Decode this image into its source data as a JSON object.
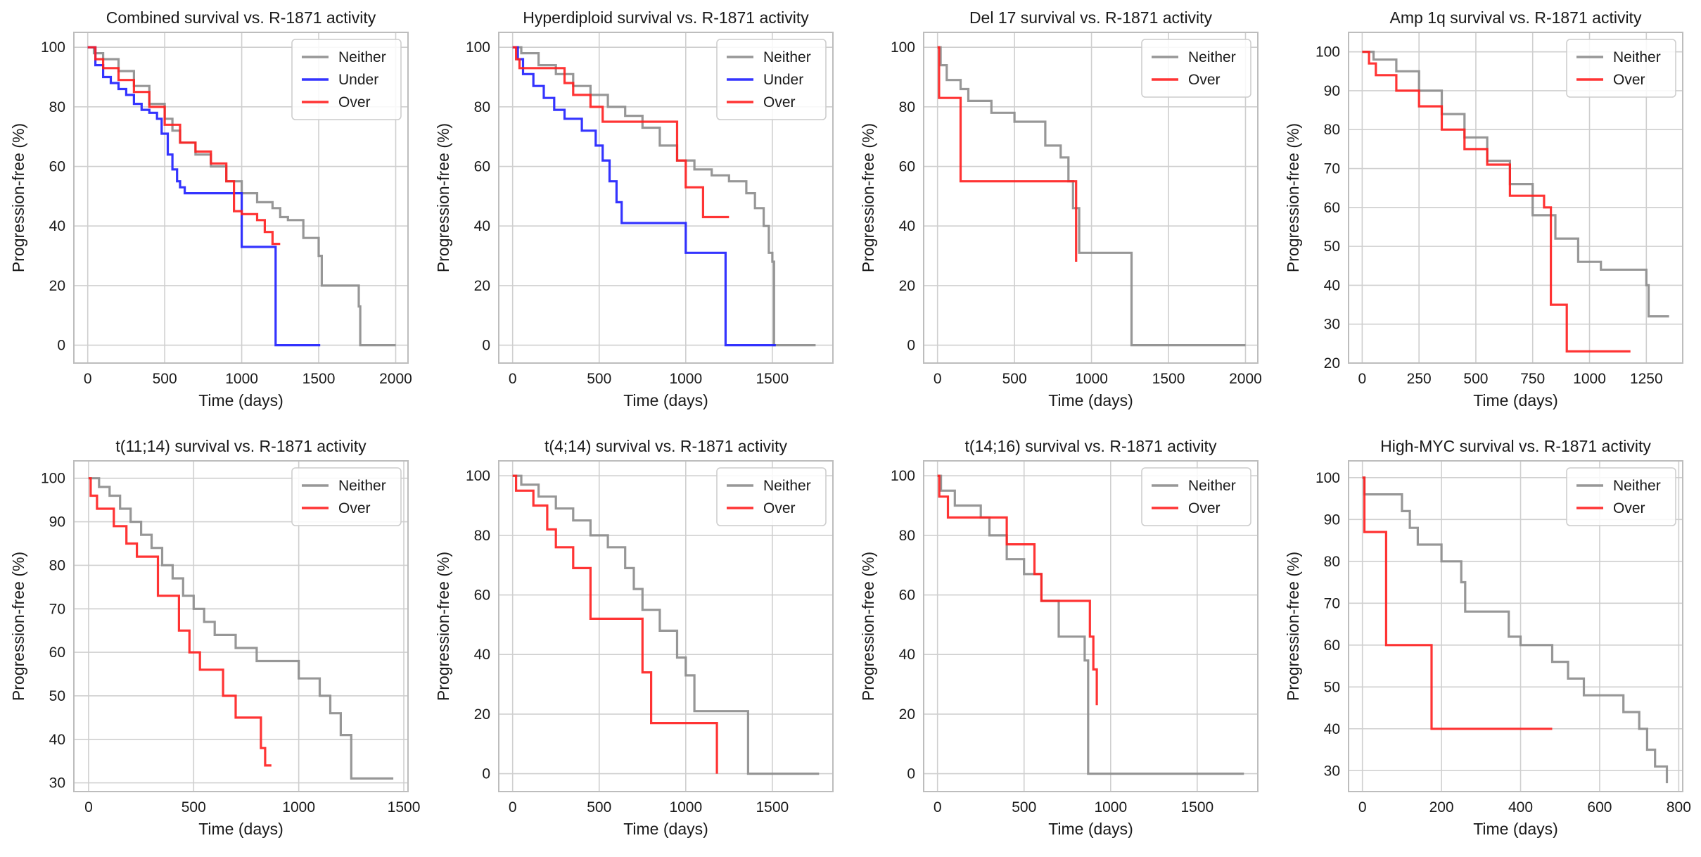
{
  "figure": {
    "colors": {
      "Neither": "#8c8c8c",
      "Under": "#1e1eff",
      "Over": "#ff1e1e",
      "grid": "#cfcfcf",
      "frame": "#bdbdbd"
    }
  },
  "chart_data": [
    {
      "type": "line",
      "title": "Combined survival vs. R-1871 activity",
      "xlabel": "Time (days)",
      "ylabel": "Progression-free (%)",
      "xlim": [
        -90,
        2080
      ],
      "ylim": [
        -6,
        105
      ],
      "xticks": [
        0,
        500,
        1000,
        1500,
        2000
      ],
      "yticks": [
        0,
        20,
        40,
        60,
        80,
        100
      ],
      "grid": true,
      "legend_position": "top-right",
      "series": [
        {
          "name": "Neither",
          "x": [
            0,
            40,
            100,
            200,
            300,
            400,
            500,
            550,
            600,
            700,
            800,
            900,
            1000,
            1100,
            1200,
            1250,
            1300,
            1400,
            1500,
            1520,
            1760,
            1770,
            2000
          ],
          "y": [
            100,
            98,
            96,
            92,
            87,
            81,
            76,
            72,
            68,
            64,
            60,
            55,
            51,
            48,
            46,
            43,
            42,
            36,
            30,
            20,
            13,
            0,
            0
          ]
        },
        {
          "name": "Under",
          "x": [
            0,
            50,
            100,
            150,
            200,
            250,
            300,
            350,
            400,
            450,
            480,
            520,
            550,
            580,
            600,
            630,
            980,
            1000,
            1210,
            1220,
            1510
          ],
          "y": [
            100,
            94,
            90,
            88,
            86,
            84,
            81,
            79,
            78,
            76,
            71,
            64,
            59,
            55,
            53,
            51,
            51,
            33,
            33,
            0,
            0
          ]
        },
        {
          "name": "Over",
          "x": [
            0,
            50,
            100,
            200,
            300,
            400,
            500,
            600,
            700,
            800,
            900,
            950,
            1000,
            1100,
            1150,
            1200,
            1250
          ],
          "y": [
            100,
            96,
            93,
            89,
            85,
            80,
            74,
            68,
            65,
            61,
            55,
            45,
            44,
            42,
            38,
            34,
            34
          ]
        }
      ]
    },
    {
      "type": "line",
      "title": "Hyperdiploid survival vs. R-1871 activity",
      "xlabel": "Time (days)",
      "ylabel": "Progression-free (%)",
      "xlim": [
        -80,
        1850
      ],
      "ylim": [
        -6,
        105
      ],
      "xticks": [
        0,
        500,
        1000,
        1500
      ],
      "yticks": [
        0,
        20,
        40,
        60,
        80,
        100
      ],
      "grid": true,
      "legend_position": "top-right",
      "series": [
        {
          "name": "Neither",
          "x": [
            0,
            50,
            150,
            250,
            350,
            450,
            550,
            650,
            750,
            850,
            950,
            1050,
            1150,
            1250,
            1350,
            1400,
            1450,
            1480,
            1500,
            1510,
            1750
          ],
          "y": [
            100,
            98,
            94,
            91,
            87,
            84,
            80,
            77,
            73,
            67,
            62,
            59,
            57,
            55,
            51,
            46,
            40,
            31,
            28,
            0,
            0
          ]
        },
        {
          "name": "Under",
          "x": [
            0,
            30,
            60,
            120,
            180,
            240,
            300,
            400,
            480,
            520,
            560,
            600,
            630,
            1000,
            1220,
            1230,
            1520
          ],
          "y": [
            100,
            96,
            91,
            87,
            83,
            79,
            76,
            72,
            67,
            62,
            55,
            48,
            41,
            31,
            31,
            0,
            0
          ]
        },
        {
          "name": "Over",
          "x": [
            0,
            20,
            40,
            200,
            300,
            350,
            450,
            520,
            900,
            950,
            1000,
            1100,
            1250
          ],
          "y": [
            100,
            96,
            93,
            93,
            88,
            84,
            80,
            75,
            75,
            62,
            53,
            43,
            43
          ]
        }
      ]
    },
    {
      "type": "line",
      "title": "Del 17 survival vs. R-1871 activity",
      "xlabel": "Time (days)",
      "ylabel": "Progression-free (%)",
      "xlim": [
        -90,
        2080
      ],
      "ylim": [
        -6,
        105
      ],
      "xticks": [
        0,
        500,
        1000,
        1500,
        2000
      ],
      "yticks": [
        0,
        20,
        40,
        60,
        80,
        100
      ],
      "grid": true,
      "legend_position": "top-right",
      "series": [
        {
          "name": "Neither",
          "x": [
            0,
            20,
            60,
            150,
            200,
            350,
            500,
            700,
            800,
            850,
            880,
            920,
            1250,
            1260,
            2000
          ],
          "y": [
            100,
            94,
            89,
            86,
            82,
            78,
            75,
            67,
            63,
            55,
            46,
            31,
            31,
            0,
            0
          ]
        },
        {
          "name": "Over",
          "x": [
            0,
            10,
            140,
            150,
            880,
            900
          ],
          "y": [
            100,
            83,
            83,
            55,
            55,
            28
          ]
        }
      ]
    },
    {
      "type": "line",
      "title": "Amp 1q survival vs. R-1871 activity",
      "xlabel": "Time (days)",
      "ylabel": "Progression-free (%)",
      "xlim": [
        -60,
        1410
      ],
      "ylim": [
        20,
        105
      ],
      "xticks": [
        0,
        250,
        500,
        750,
        1000,
        1250
      ],
      "yticks": [
        20,
        30,
        40,
        50,
        60,
        70,
        80,
        90,
        100
      ],
      "grid": true,
      "legend_position": "top-right",
      "series": [
        {
          "name": "Neither",
          "x": [
            0,
            50,
            150,
            250,
            350,
            450,
            550,
            650,
            750,
            850,
            950,
            1050,
            1150,
            1250,
            1260,
            1350
          ],
          "y": [
            100,
            98,
            95,
            90,
            84,
            78,
            72,
            66,
            58,
            52,
            46,
            44,
            44,
            40,
            32,
            32
          ]
        },
        {
          "name": "Over",
          "x": [
            0,
            30,
            60,
            150,
            250,
            350,
            450,
            550,
            650,
            800,
            830,
            900,
            1180
          ],
          "y": [
            100,
            97,
            94,
            90,
            86,
            80,
            75,
            71,
            63,
            60,
            35,
            23,
            23
          ]
        }
      ]
    },
    {
      "type": "line",
      "title": "t(11;14) survival vs. R-1871 activity",
      "xlabel": "Time (days)",
      "ylabel": "Progression-free (%)",
      "xlim": [
        -70,
        1520
      ],
      "ylim": [
        28,
        104
      ],
      "xticks": [
        0,
        500,
        1000,
        1500
      ],
      "yticks": [
        30,
        40,
        50,
        60,
        70,
        80,
        90,
        100
      ],
      "grid": true,
      "legend_position": "top-right",
      "series": [
        {
          "name": "Neither",
          "x": [
            0,
            50,
            100,
            150,
            200,
            250,
            300,
            350,
            400,
            450,
            500,
            550,
            600,
            700,
            800,
            1000,
            1100,
            1150,
            1200,
            1250,
            1450
          ],
          "y": [
            100,
            98,
            96,
            93,
            90,
            87,
            84,
            80,
            77,
            73,
            70,
            67,
            64,
            61,
            58,
            54,
            50,
            46,
            41,
            31,
            31
          ]
        },
        {
          "name": "Over",
          "x": [
            0,
            10,
            40,
            120,
            180,
            230,
            330,
            430,
            480,
            530,
            640,
            700,
            820,
            840,
            870
          ],
          "y": [
            100,
            96,
            93,
            89,
            85,
            82,
            73,
            65,
            60,
            56,
            50,
            45,
            38,
            34,
            34
          ]
        }
      ]
    },
    {
      "type": "line",
      "title": "t(4;14) survival vs. R-1871 activity",
      "xlabel": "Time (days)",
      "ylabel": "Progression-free (%)",
      "xlim": [
        -80,
        1850
      ],
      "ylim": [
        -6,
        105
      ],
      "xticks": [
        0,
        500,
        1000,
        1500
      ],
      "yticks": [
        0,
        20,
        40,
        60,
        80,
        100
      ],
      "grid": true,
      "legend_position": "top-right",
      "series": [
        {
          "name": "Neither",
          "x": [
            0,
            50,
            150,
            250,
            350,
            450,
            550,
            650,
            700,
            750,
            850,
            950,
            1000,
            1050,
            1350,
            1360,
            1770
          ],
          "y": [
            100,
            97,
            93,
            89,
            85,
            80,
            76,
            69,
            62,
            55,
            48,
            39,
            33,
            21,
            21,
            0,
            0
          ]
        },
        {
          "name": "Over",
          "x": [
            0,
            20,
            120,
            200,
            250,
            350,
            450,
            700,
            750,
            800,
            1180
          ],
          "y": [
            100,
            95,
            90,
            82,
            76,
            69,
            52,
            52,
            34,
            17,
            0
          ]
        }
      ]
    },
    {
      "type": "line",
      "title": "t(14;16) survival vs. R-1871 activity",
      "xlabel": "Time (days)",
      "ylabel": "Progression-free (%)",
      "xlim": [
        -80,
        1850
      ],
      "ylim": [
        -6,
        105
      ],
      "xticks": [
        0,
        500,
        1000,
        1500
      ],
      "yticks": [
        0,
        20,
        40,
        60,
        80,
        100
      ],
      "grid": true,
      "legend_position": "top-right",
      "series": [
        {
          "name": "Neither",
          "x": [
            0,
            20,
            100,
            250,
            300,
            400,
            500,
            600,
            700,
            850,
            870,
            1770
          ],
          "y": [
            100,
            95,
            90,
            86,
            80,
            72,
            67,
            58,
            46,
            38,
            0,
            0
          ]
        },
        {
          "name": "Over",
          "x": [
            0,
            10,
            60,
            380,
            400,
            560,
            600,
            880,
            900,
            920
          ],
          "y": [
            100,
            93,
            86,
            86,
            77,
            67,
            58,
            46,
            35,
            23
          ]
        }
      ]
    },
    {
      "type": "line",
      "title": "High-MYC survival vs. R-1871 activity",
      "xlabel": "Time (days)",
      "ylabel": "Progression-free (%)",
      "xlim": [
        -35,
        810
      ],
      "ylim": [
        25,
        104
      ],
      "xticks": [
        0,
        200,
        400,
        600,
        800
      ],
      "yticks": [
        30,
        40,
        50,
        60,
        70,
        80,
        90,
        100
      ],
      "grid": true,
      "legend_position": "top-right",
      "series": [
        {
          "name": "Neither",
          "x": [
            0,
            5,
            100,
            120,
            140,
            200,
            250,
            260,
            370,
            400,
            430,
            480,
            520,
            560,
            660,
            700,
            720,
            740,
            770
          ],
          "y": [
            100,
            96,
            92,
            88,
            84,
            80,
            75,
            68,
            62,
            60,
            60,
            56,
            52,
            48,
            44,
            40,
            35,
            31,
            27
          ]
        },
        {
          "name": "Over",
          "x": [
            0,
            5,
            55,
            60,
            170,
            175,
            480
          ],
          "y": [
            100,
            87,
            87,
            60,
            60,
            40,
            40
          ]
        }
      ]
    }
  ]
}
